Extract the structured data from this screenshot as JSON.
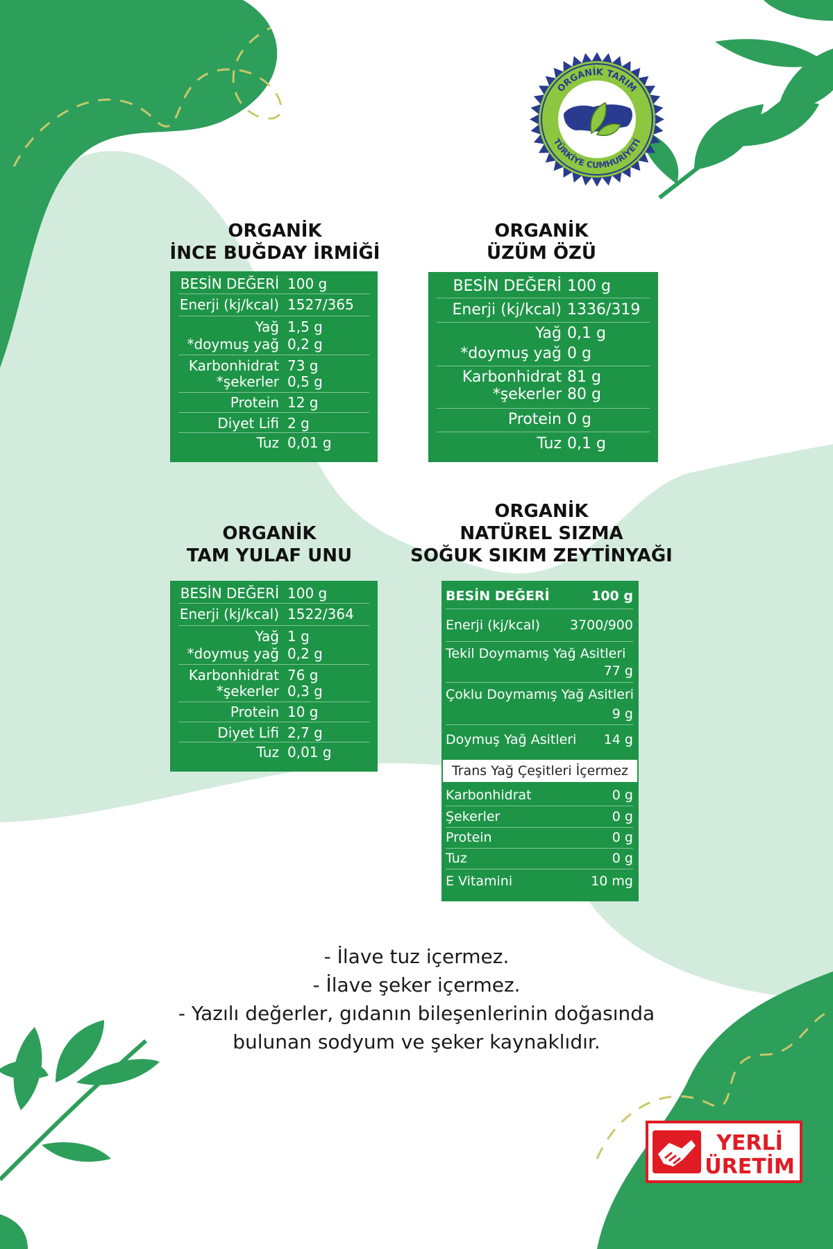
{
  "products": [
    {
      "title_line1": "ORGANİK",
      "title_line2": "İNCE BUĞDAY İRMİĞİ",
      "header": {
        "label": "BESİN DEĞERİ",
        "value": "100 g"
      },
      "rows": [
        {
          "lines": [
            {
              "label": "Enerji (kj/kcal)",
              "value": "1527/365"
            }
          ]
        },
        {
          "lines": [
            {
              "label": "Yağ",
              "value": "1,5 g"
            },
            {
              "label": "*doymuş yağ",
              "value": "0,2 g"
            }
          ]
        },
        {
          "lines": [
            {
              "label": "Karbonhidrat",
              "value": "73 g"
            },
            {
              "label": "*şekerler",
              "value": "0,5 g"
            }
          ]
        },
        {
          "lines": [
            {
              "label": "Protein",
              "value": "12 g"
            }
          ]
        },
        {
          "lines": [
            {
              "label": "Diyet Lifi",
              "value": "2 g"
            }
          ]
        },
        {
          "lines": [
            {
              "label": "Tuz",
              "value": "0,01 g"
            }
          ]
        }
      ]
    },
    {
      "title_line1": "ORGANİK",
      "title_line2": "ÜZÜM ÖZÜ",
      "header": {
        "label": "BESİN DEĞERİ",
        "value": "100 g"
      },
      "rows": [
        {
          "lines": [
            {
              "label": "Enerji (kj/kcal)",
              "value": "1336/319"
            }
          ]
        },
        {
          "lines": [
            {
              "label": "Yağ",
              "value": "0,1 g"
            },
            {
              "label": "*doymuş yağ",
              "value": "0 g"
            }
          ]
        },
        {
          "lines": [
            {
              "label": "Karbonhidrat",
              "value": "81 g"
            },
            {
              "label": "*şekerler",
              "value": "80 g"
            }
          ]
        },
        {
          "lines": [
            {
              "label": "Protein",
              "value": "0 g"
            }
          ]
        },
        {
          "lines": [
            {
              "label": "Tuz",
              "value": "0,1 g"
            }
          ]
        }
      ]
    },
    {
      "title_line1": "ORGANİK",
      "title_line2": "TAM YULAF UNU",
      "header": {
        "label": "BESİN DEĞERİ",
        "value": "100 g"
      },
      "rows": [
        {
          "lines": [
            {
              "label": "Enerji (kj/kcal)",
              "value": "1522/364"
            }
          ]
        },
        {
          "lines": [
            {
              "label": "Yağ",
              "value": "1 g"
            },
            {
              "label": "*doymuş yağ",
              "value": "0,2 g"
            }
          ]
        },
        {
          "lines": [
            {
              "label": "Karbonhidrat",
              "value": "76 g"
            },
            {
              "label": "*şekerler",
              "value": "0,3 g"
            }
          ]
        },
        {
          "lines": [
            {
              "label": "Protein",
              "value": "10 g"
            }
          ]
        },
        {
          "lines": [
            {
              "label": "Diyet Lifi",
              "value": "2,7 g"
            }
          ]
        },
        {
          "lines": [
            {
              "label": "Tuz",
              "value": "0,01 g"
            }
          ]
        }
      ]
    }
  ],
  "olive_oil": {
    "title_line1": "ORGANİK",
    "title_line2": "NATÜREL SIZMA",
    "title_line3": "SOĞUK SIKIM ZEYTİNYAĞI",
    "header": {
      "label": "BESİN DEĞERİ",
      "value": "100 g"
    },
    "energy": {
      "label": "Enerji (kj/kcal)",
      "value": "3700/900"
    },
    "mufa": {
      "label": "Tekil Doymamış Yağ Asitleri",
      "value": "77 g"
    },
    "pufa": {
      "label": "Çoklu Doymamış Yağ Asitleri",
      "value": "9 g"
    },
    "sfa": {
      "label": "Doymuş Yağ Asitleri",
      "value": "14 g"
    },
    "trans_note": "Trans Yağ Çeşitleri İçermez",
    "rows": [
      {
        "label": "Karbonhidrat",
        "value": "0 g"
      },
      {
        "label": "Şekerler",
        "value": "0 g"
      },
      {
        "label": "Protein",
        "value": "0 g"
      },
      {
        "label": "Tuz",
        "value": "0 g"
      },
      {
        "label": "E Vitamini",
        "value": "10 mg"
      }
    ]
  },
  "notes": [
    "- İlave tuz içermez.",
    "- İlave şeker içermez.",
    "- Yazılı değerler, gıdanın bileşenlerinin doğasında",
    "bulunan sodyum ve şeker kaynaklıdır."
  ],
  "seal": {
    "top_text": "ORGANİK TARIM",
    "bottom_text": "TÜRKİYE CUMHURİYETİ"
  },
  "badge": {
    "line1": "YERLİ",
    "line2": "ÜRETİM"
  },
  "colors": {
    "green": "#1e9447",
    "dark_green": "#2e9e5b",
    "light_green": "#d3ebdd",
    "seal_blue": "#2a3b8f",
    "seal_green": "#8dc63f",
    "badge_red": "#e01b24"
  }
}
